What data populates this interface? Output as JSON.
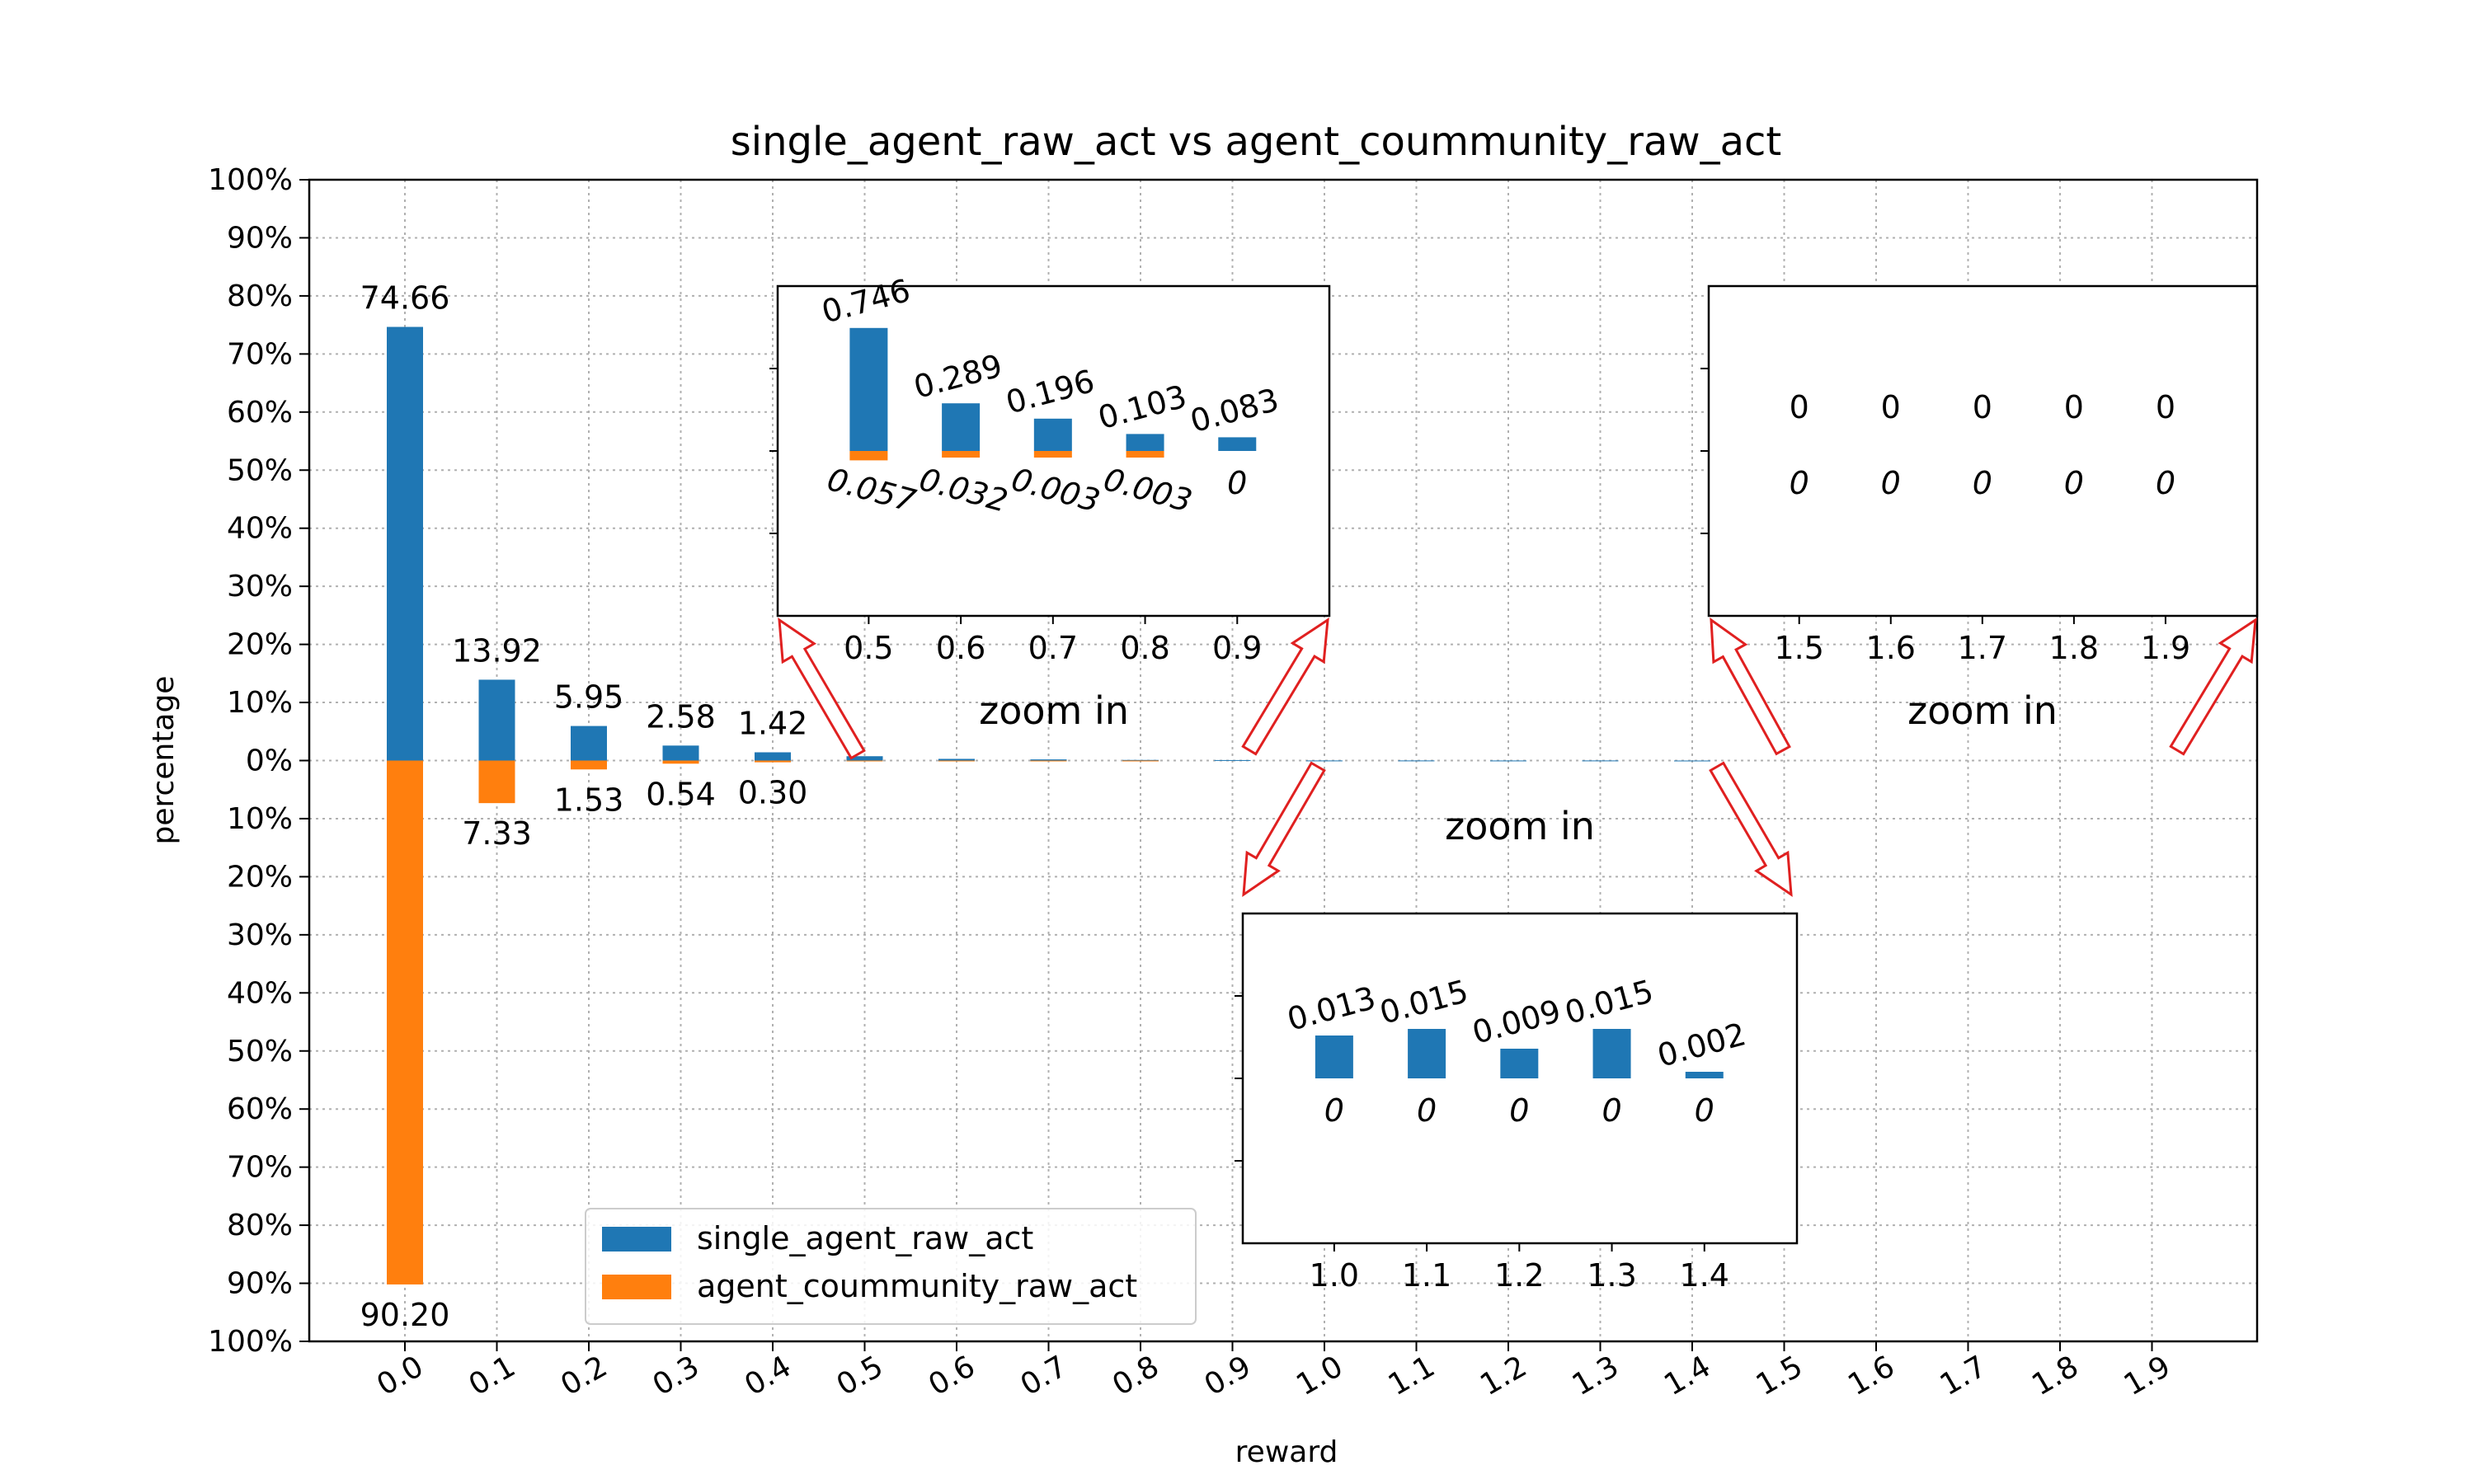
{
  "chart_data": {
    "type": "bar",
    "title": "single_agent_raw_act vs agent_coummunity_raw_act",
    "xlabel": "reward",
    "ylabel": "percentage",
    "categories": [
      "0.0",
      "0.1",
      "0.2",
      "0.3",
      "0.4",
      "0.5",
      "0.6",
      "0.7",
      "0.8",
      "0.9",
      "1.0",
      "1.1",
      "1.2",
      "1.3",
      "1.4",
      "1.5",
      "1.6",
      "1.7",
      "1.8",
      "1.9"
    ],
    "series": [
      {
        "name": "single_agent_raw_act",
        "color": "#1f77b4",
        "direction": "up",
        "values": [
          74.66,
          13.92,
          5.95,
          2.58,
          1.42,
          0.746,
          0.289,
          0.196,
          0.103,
          0.083,
          0.013,
          0.015,
          0.009,
          0.015,
          0.002,
          0,
          0,
          0,
          0,
          0
        ],
        "labels": [
          "74.66",
          "13.92",
          "5.95",
          "2.58",
          "1.42",
          "0.746",
          "0.289",
          "0.196",
          "0.103",
          "0.083",
          "0.013",
          "0.015",
          "0.009",
          "0.015",
          "0.002",
          "0",
          "0",
          "0",
          "0",
          "0"
        ]
      },
      {
        "name": "agent_coummunity_raw_act",
        "color": "#ff7f0e",
        "direction": "down",
        "values": [
          90.2,
          7.33,
          1.53,
          0.54,
          0.3,
          0.057,
          0.032,
          0.003,
          0.003,
          0,
          0,
          0,
          0,
          0,
          0,
          0,
          0,
          0,
          0,
          0
        ],
        "labels": [
          "90.20",
          "7.33",
          "1.53",
          "0.54",
          "0.30",
          "0.057",
          "0.032",
          "0.003",
          "0.003",
          "0",
          "0",
          "0",
          "0",
          "0",
          "0",
          "0",
          "0",
          "0",
          "0",
          "0"
        ]
      }
    ],
    "ylim": [
      -100,
      100
    ],
    "yticks": [
      "100%",
      "90%",
      "80%",
      "70%",
      "60%",
      "50%",
      "40%",
      "30%",
      "20%",
      "10%",
      "0%",
      "10%",
      "20%",
      "30%",
      "40%",
      "50%",
      "60%",
      "70%",
      "80%",
      "90%",
      "100%"
    ],
    "grid": true,
    "legend": "lower-left",
    "insets": [
      {
        "categories": [
          "0.5",
          "0.6",
          "0.7",
          "0.8",
          "0.9"
        ],
        "start_index": 5,
        "ylim": [
          -1,
          1
        ],
        "caption": "zoom in",
        "rotate_labels": true
      },
      {
        "categories": [
          "1.0",
          "1.1",
          "1.2",
          "1.3",
          "1.4"
        ],
        "start_index": 10,
        "ylim": [
          -0.05,
          0.05
        ],
        "caption": "zoom in",
        "rotate_labels": true
      },
      {
        "categories": [
          "1.5",
          "1.6",
          "1.7",
          "1.8",
          "1.9"
        ],
        "start_index": 15,
        "ylim": [
          -0.05,
          0.05
        ],
        "caption": "zoom in",
        "rotate_labels": false
      }
    ]
  }
}
